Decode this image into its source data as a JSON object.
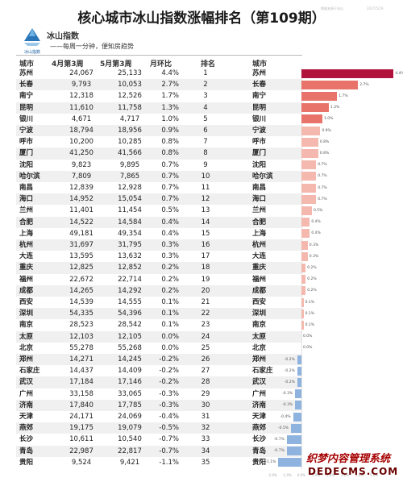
{
  "title": "核心城市冰山指数涨幅排名（第109期）",
  "meta_left": "数据来源于冰山",
  "meta_right": "2017/5/19",
  "brand": {
    "name": "冰山指数",
    "sub": "冰山指数",
    "slogan": "——每周一分钟，便知房趋势"
  },
  "watermark": {
    "cn": "织梦内容管理系统",
    "en": "DEDECMS.COM"
  },
  "table": {
    "headers": {
      "city": "城市",
      "apr": "4月第3周",
      "may": "5月第3周",
      "chg": "月环比",
      "rank": "排名",
      "city2": "城市"
    },
    "rows": [
      {
        "city": "苏州",
        "apr": "24,067",
        "may": "25,133",
        "chg": "4.4%",
        "rank": "1"
      },
      {
        "city": "长春",
        "apr": "9,793",
        "may": "10,053",
        "chg": "2.7%",
        "rank": "2"
      },
      {
        "city": "南宁",
        "apr": "12,318",
        "may": "12,526",
        "chg": "1.7%",
        "rank": "3"
      },
      {
        "city": "昆明",
        "apr": "11,610",
        "may": "11,758",
        "chg": "1.3%",
        "rank": "4"
      },
      {
        "city": "银川",
        "apr": "4,671",
        "may": "4,717",
        "chg": "1.0%",
        "rank": "5"
      },
      {
        "city": "宁波",
        "apr": "18,794",
        "may": "18,956",
        "chg": "0.9%",
        "rank": "6"
      },
      {
        "city": "呼市",
        "apr": "10,200",
        "may": "10,285",
        "chg": "0.8%",
        "rank": "7"
      },
      {
        "city": "厦门",
        "apr": "41,250",
        "may": "41,566",
        "chg": "0.8%",
        "rank": "8"
      },
      {
        "city": "沈阳",
        "apr": "9,823",
        "may": "9,895",
        "chg": "0.7%",
        "rank": "9"
      },
      {
        "city": "哈尔滨",
        "apr": "7,809",
        "may": "7,865",
        "chg": "0.7%",
        "rank": "10"
      },
      {
        "city": "南昌",
        "apr": "12,839",
        "may": "12,928",
        "chg": "0.7%",
        "rank": "11"
      },
      {
        "city": "海口",
        "apr": "14,952",
        "may": "15,054",
        "chg": "0.7%",
        "rank": "12"
      },
      {
        "city": "兰州",
        "apr": "11,401",
        "may": "11,454",
        "chg": "0.5%",
        "rank": "13"
      },
      {
        "city": "合肥",
        "apr": "14,522",
        "may": "14,584",
        "chg": "0.4%",
        "rank": "14"
      },
      {
        "city": "上海",
        "apr": "49,181",
        "may": "49,354",
        "chg": "0.4%",
        "rank": "15"
      },
      {
        "city": "杭州",
        "apr": "31,697",
        "may": "31,795",
        "chg": "0.3%",
        "rank": "16"
      },
      {
        "city": "大连",
        "apr": "13,595",
        "may": "13,632",
        "chg": "0.3%",
        "rank": "17"
      },
      {
        "city": "重庆",
        "apr": "12,825",
        "may": "12,852",
        "chg": "0.2%",
        "rank": "18"
      },
      {
        "city": "福州",
        "apr": "22,672",
        "may": "22,714",
        "chg": "0.2%",
        "rank": "19"
      },
      {
        "city": "成都",
        "apr": "14,265",
        "may": "14,292",
        "chg": "0.2%",
        "rank": "20"
      },
      {
        "city": "西安",
        "apr": "14,539",
        "may": "14,555",
        "chg": "0.1%",
        "rank": "21"
      },
      {
        "city": "深圳",
        "apr": "54,335",
        "may": "54,396",
        "chg": "0.1%",
        "rank": "22"
      },
      {
        "city": "南京",
        "apr": "28,523",
        "may": "28,542",
        "chg": "0.1%",
        "rank": "23"
      },
      {
        "city": "太原",
        "apr": "12,103",
        "may": "12,105",
        "chg": "0.0%",
        "rank": "24"
      },
      {
        "city": "北京",
        "apr": "55,278",
        "may": "55,268",
        "chg": "0.0%",
        "rank": "25"
      },
      {
        "city": "郑州",
        "apr": "14,271",
        "may": "14,245",
        "chg": "-0.2%",
        "rank": "26"
      },
      {
        "city": "石家庄",
        "apr": "14,437",
        "may": "14,409",
        "chg": "-0.2%",
        "rank": "27"
      },
      {
        "city": "武汉",
        "apr": "17,184",
        "may": "17,146",
        "chg": "-0.2%",
        "rank": "28"
      },
      {
        "city": "广州",
        "apr": "33,158",
        "may": "33,065",
        "chg": "-0.3%",
        "rank": "29"
      },
      {
        "city": "济南",
        "apr": "17,840",
        "may": "17,785",
        "chg": "-0.3%",
        "rank": "30"
      },
      {
        "city": "天津",
        "apr": "24,171",
        "may": "24,069",
        "chg": "-0.4%",
        "rank": "31"
      },
      {
        "city": "燕郊",
        "apr": "19,175",
        "may": "19,079",
        "chg": "-0.5%",
        "rank": "32"
      },
      {
        "city": "长沙",
        "apr": "10,611",
        "may": "10,540",
        "chg": "-0.7%",
        "rank": "33"
      },
      {
        "city": "青岛",
        "apr": "22,987",
        "may": "22,817",
        "chg": "-0.7%",
        "rank": "34"
      },
      {
        "city": "贵阳",
        "apr": "9,524",
        "may": "9,421",
        "chg": "-1.1%",
        "rank": "35"
      }
    ]
  },
  "chart_data": {
    "type": "bar",
    "orientation": "horizontal",
    "categories": [
      "苏州",
      "长春",
      "南宁",
      "昆明",
      "银川",
      "宁波",
      "呼市",
      "厦门",
      "沈阳",
      "哈尔滨",
      "南昌",
      "海口",
      "兰州",
      "合肥",
      "上海",
      "杭州",
      "大连",
      "重庆",
      "福州",
      "成都",
      "西安",
      "深圳",
      "南京",
      "太原",
      "北京",
      "郑州",
      "石家庄",
      "武汉",
      "广州",
      "济南",
      "天津",
      "燕郊",
      "长沙",
      "青岛",
      "贵阳"
    ],
    "values": [
      4.4,
      2.7,
      1.7,
      1.3,
      1.0,
      0.9,
      0.8,
      0.8,
      0.7,
      0.7,
      0.7,
      0.7,
      0.5,
      0.4,
      0.4,
      0.3,
      0.3,
      0.2,
      0.2,
      0.2,
      0.1,
      0.1,
      0.1,
      0.0,
      0.0,
      -0.2,
      -0.2,
      -0.2,
      -0.3,
      -0.3,
      -0.4,
      -0.5,
      -0.7,
      -0.7,
      -1.1
    ],
    "value_labels": [
      "4.4%",
      "2.7%",
      "1.7%",
      "1.3%",
      "1.0%",
      "0.9%",
      "0.8%",
      "0.8%",
      "0.7%",
      "0.7%",
      "0.7%",
      "0.7%",
      "0.5%",
      "0.4%",
      "0.4%",
      "0.3%",
      "0.3%",
      "0.2%",
      "0.2%",
      "0.2%",
      "0.1%",
      "0.1%",
      "0.1%",
      "0.0%",
      "0.0%",
      "-0.2%",
      "-0.2%",
      "-0.2%",
      "-0.3%",
      "-0.3%",
      "-0.4%",
      "-0.5%",
      "-0.7%",
      "-0.7%",
      "-1.1%"
    ],
    "xlim": [
      -2.0,
      5.0
    ],
    "xticks": [
      "-2.0%",
      "-1.0%",
      "0.0%",
      "1.0%",
      "2.0%",
      "3.0%",
      "4.0%",
      "5.0%"
    ],
    "colors": {
      "top": "#b0123b",
      "positive": "#e8736a",
      "positive_light": "#f4b8ae",
      "negative": "#8fb3df"
    },
    "grid": false
  }
}
